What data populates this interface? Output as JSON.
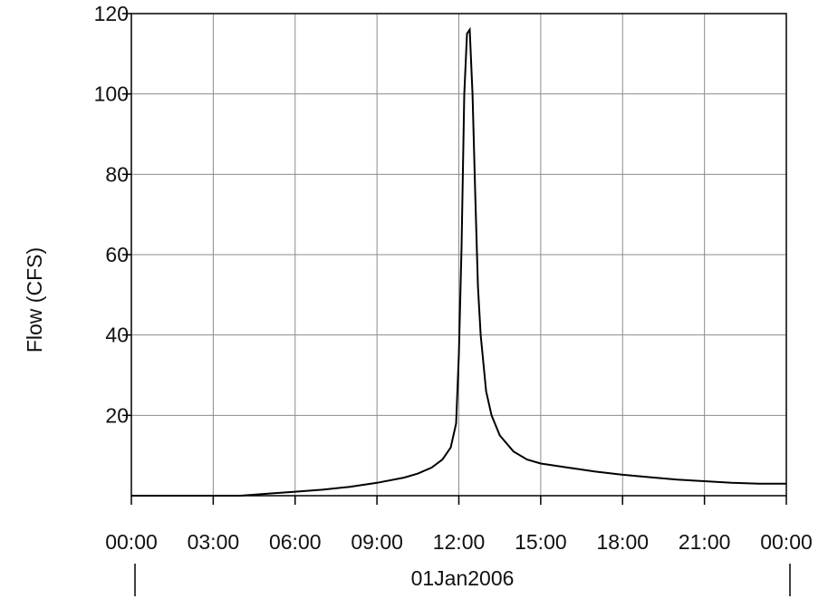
{
  "chart_data": {
    "type": "line",
    "ylabel": "Flow (CFS)",
    "xlabel": "",
    "date_label": "01Jan2006",
    "x_tick_labels": [
      "00:00",
      "03:00",
      "06:00",
      "09:00",
      "12:00",
      "15:00",
      "18:00",
      "21:00",
      "00:00"
    ],
    "y_tick_labels": [
      "20",
      "40",
      "60",
      "80",
      "100",
      "120"
    ],
    "y_ticks": [
      20,
      40,
      60,
      80,
      100,
      120
    ],
    "xlim_hours": [
      0,
      24
    ],
    "ylim": [
      0,
      120
    ],
    "grid": true,
    "series": [
      {
        "x_hours": [
          0,
          4,
          5,
          6,
          7,
          8,
          9,
          10,
          10.5,
          11,
          11.4,
          11.7,
          11.9,
          12.0,
          12.1,
          12.2,
          12.3,
          12.4,
          12.5,
          12.6,
          12.7,
          12.8,
          13.0,
          13.2,
          13.5,
          14.0,
          14.5,
          15.0,
          16.0,
          17.0,
          18.0,
          19.0,
          20.0,
          21.0,
          22.0,
          23.0,
          24.0
        ],
        "y": [
          0,
          0,
          0.5,
          1,
          1.5,
          2.2,
          3.2,
          4.5,
          5.5,
          7,
          9,
          12,
          18,
          35,
          62,
          100,
          115,
          116,
          100,
          75,
          52,
          40,
          26,
          20,
          15,
          11,
          9,
          8,
          7,
          6,
          5.2,
          4.6,
          4.0,
          3.6,
          3.2,
          3.0,
          3.0
        ]
      }
    ],
    "line_color": "#000000",
    "grid_color": "#8c8c8c"
  }
}
